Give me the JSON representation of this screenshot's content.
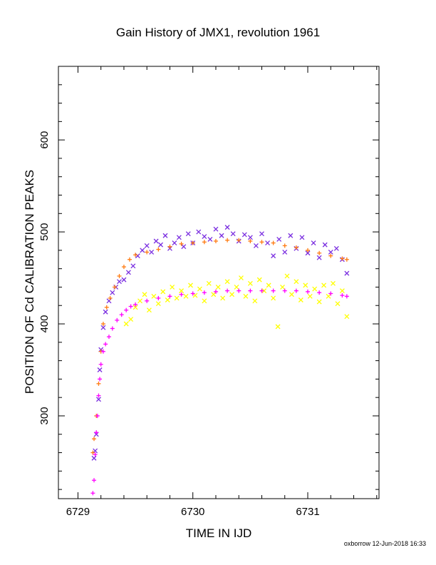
{
  "title": "Gain History of JMX1, revolution 1961",
  "footer": "oxborrow 12-Jun-2018 16:33",
  "chart_data": {
    "type": "scatter",
    "title": "Gain History of JMX1, revolution 1961",
    "xlabel": "TIME IN IJD",
    "ylabel": "POSITION OF Cd CALIBRATION PEAKS",
    "xlim": [
      6728.83,
      6731.62
    ],
    "ylim": [
      210,
      680
    ],
    "xticks": [
      6729,
      6730,
      6731
    ],
    "yticks": [
      300,
      400,
      500,
      600
    ],
    "grid": false,
    "colors": {
      "upper_raw": "#7a2ee0",
      "upper_fit": "#ff7a10",
      "lower_raw": "#ffff00",
      "lower_fit": "#ff00ff"
    },
    "series": [
      {
        "marker": "x",
        "color": "#7a2ee0",
        "points": [
          [
            6729.14,
            254
          ],
          [
            6729.15,
            262
          ],
          [
            6729.16,
            280
          ],
          [
            6729.18,
            318
          ],
          [
            6729.19,
            350
          ],
          [
            6729.2,
            372
          ],
          [
            6729.22,
            396
          ],
          [
            6729.24,
            413
          ],
          [
            6729.27,
            425
          ],
          [
            6729.3,
            434
          ],
          [
            6729.33,
            440
          ],
          [
            6729.36,
            446
          ],
          [
            6729.4,
            448
          ],
          [
            6729.44,
            456
          ],
          [
            6729.48,
            463
          ],
          [
            6729.52,
            474
          ],
          [
            6729.56,
            480
          ],
          [
            6729.6,
            485
          ],
          [
            6729.64,
            478
          ],
          [
            6729.68,
            490
          ],
          [
            6729.72,
            486
          ],
          [
            6729.76,
            496
          ],
          [
            6729.8,
            482
          ],
          [
            6729.84,
            488
          ],
          [
            6729.88,
            494
          ],
          [
            6729.92,
            484
          ],
          [
            6729.96,
            498
          ],
          [
            6730.0,
            488
          ],
          [
            6730.05,
            500
          ],
          [
            6730.1,
            495
          ],
          [
            6730.15,
            492
          ],
          [
            6730.2,
            503
          ],
          [
            6730.25,
            496
          ],
          [
            6730.3,
            505
          ],
          [
            6730.35,
            498
          ],
          [
            6730.4,
            490
          ],
          [
            6730.45,
            497
          ],
          [
            6730.5,
            494
          ],
          [
            6730.55,
            485
          ],
          [
            6730.6,
            498
          ],
          [
            6730.65,
            488
          ],
          [
            6730.7,
            474
          ],
          [
            6730.75,
            492
          ],
          [
            6730.8,
            478
          ],
          [
            6730.85,
            496
          ],
          [
            6730.9,
            482
          ],
          [
            6730.95,
            494
          ],
          [
            6731.0,
            477
          ],
          [
            6731.05,
            488
          ],
          [
            6731.1,
            472
          ],
          [
            6731.15,
            486
          ],
          [
            6731.2,
            478
          ],
          [
            6731.25,
            482
          ],
          [
            6731.3,
            470
          ],
          [
            6731.34,
            455
          ]
        ]
      },
      {
        "marker": "+",
        "color": "#ff7a10",
        "points": [
          [
            6729.13,
            260
          ],
          [
            6729.14,
            275
          ],
          [
            6729.16,
            300
          ],
          [
            6729.18,
            335
          ],
          [
            6729.2,
            370
          ],
          [
            6729.22,
            400
          ],
          [
            6729.25,
            418
          ],
          [
            6729.28,
            428
          ],
          [
            6729.32,
            440
          ],
          [
            6729.36,
            452
          ],
          [
            6729.4,
            462
          ],
          [
            6729.45,
            470
          ],
          [
            6729.5,
            475
          ],
          [
            6729.6,
            478
          ],
          [
            6729.7,
            481
          ],
          [
            6729.8,
            484
          ],
          [
            6729.9,
            487
          ],
          [
            6730.0,
            488
          ],
          [
            6730.1,
            489
          ],
          [
            6730.2,
            490
          ],
          [
            6730.3,
            491
          ],
          [
            6730.4,
            491
          ],
          [
            6730.5,
            490
          ],
          [
            6730.6,
            489
          ],
          [
            6730.7,
            488
          ],
          [
            6730.8,
            485
          ],
          [
            6730.9,
            483
          ],
          [
            6731.0,
            480
          ],
          [
            6731.1,
            477
          ],
          [
            6731.2,
            474
          ],
          [
            6731.3,
            471
          ],
          [
            6731.34,
            470
          ]
        ]
      },
      {
        "marker": "x",
        "color": "#ffff00",
        "points": [
          [
            6729.42,
            400
          ],
          [
            6729.46,
            405
          ],
          [
            6729.5,
            418
          ],
          [
            6729.54,
            425
          ],
          [
            6729.58,
            432
          ],
          [
            6729.62,
            415
          ],
          [
            6729.66,
            430
          ],
          [
            6729.7,
            422
          ],
          [
            6729.74,
            435
          ],
          [
            6729.78,
            426
          ],
          [
            6729.82,
            440
          ],
          [
            6729.86,
            428
          ],
          [
            6729.9,
            436
          ],
          [
            6729.94,
            430
          ],
          [
            6729.98,
            442
          ],
          [
            6730.02,
            431
          ],
          [
            6730.06,
            438
          ],
          [
            6730.1,
            425
          ],
          [
            6730.14,
            444
          ],
          [
            6730.18,
            432
          ],
          [
            6730.22,
            440
          ],
          [
            6730.26,
            428
          ],
          [
            6730.3,
            446
          ],
          [
            6730.34,
            432
          ],
          [
            6730.38,
            440
          ],
          [
            6730.42,
            450
          ],
          [
            6730.46,
            430
          ],
          [
            6730.5,
            444
          ],
          [
            6730.54,
            425
          ],
          [
            6730.58,
            448
          ],
          [
            6730.62,
            436
          ],
          [
            6730.66,
            442
          ],
          [
            6730.7,
            428
          ],
          [
            6730.74,
            397
          ],
          [
            6730.78,
            440
          ],
          [
            6730.82,
            452
          ],
          [
            6730.86,
            432
          ],
          [
            6730.9,
            446
          ],
          [
            6730.94,
            426
          ],
          [
            6730.98,
            442
          ],
          [
            6731.02,
            430
          ],
          [
            6731.06,
            438
          ],
          [
            6731.1,
            424
          ],
          [
            6731.14,
            442
          ],
          [
            6731.18,
            430
          ],
          [
            6731.22,
            444
          ],
          [
            6731.26,
            422
          ],
          [
            6731.3,
            436
          ],
          [
            6731.34,
            408
          ]
        ]
      },
      {
        "marker": "+",
        "color": "#ff00ff",
        "points": [
          [
            6729.13,
            216
          ],
          [
            6729.14,
            230
          ],
          [
            6729.15,
            258
          ],
          [
            6729.16,
            282
          ],
          [
            6729.17,
            300
          ],
          [
            6729.18,
            322
          ],
          [
            6729.19,
            340
          ],
          [
            6729.2,
            356
          ],
          [
            6729.22,
            370
          ],
          [
            6729.24,
            378
          ],
          [
            6729.27,
            386
          ],
          [
            6729.3,
            395
          ],
          [
            6729.34,
            404
          ],
          [
            6729.38,
            410
          ],
          [
            6729.42,
            415
          ],
          [
            6729.46,
            419
          ],
          [
            6729.5,
            421
          ],
          [
            6729.6,
            425
          ],
          [
            6729.7,
            428
          ],
          [
            6729.8,
            430
          ],
          [
            6729.9,
            432
          ],
          [
            6730.0,
            433
          ],
          [
            6730.1,
            434
          ],
          [
            6730.2,
            435
          ],
          [
            6730.3,
            436
          ],
          [
            6730.4,
            436
          ],
          [
            6730.5,
            436
          ],
          [
            6730.6,
            436
          ],
          [
            6730.7,
            436
          ],
          [
            6730.8,
            436
          ],
          [
            6730.9,
            436
          ],
          [
            6731.0,
            435
          ],
          [
            6731.1,
            434
          ],
          [
            6731.2,
            433
          ],
          [
            6731.3,
            431
          ],
          [
            6731.34,
            430
          ]
        ]
      }
    ]
  }
}
